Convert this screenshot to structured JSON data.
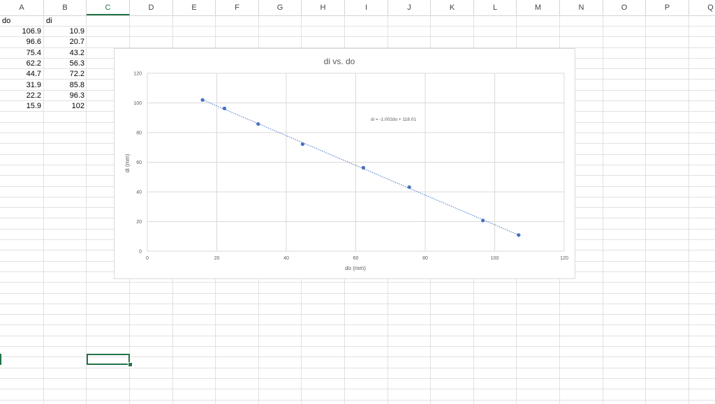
{
  "columns": [
    "A",
    "B",
    "C",
    "D",
    "E",
    "F",
    "G",
    "H",
    "I",
    "J",
    "K",
    "L",
    "M",
    "N",
    "O",
    "P",
    "Q"
  ],
  "selected_column": "C",
  "headers": {
    "a1": "do",
    "b1": "di"
  },
  "rows": [
    {
      "do": "106.9",
      "di": "10.9"
    },
    {
      "do": "96.6",
      "di": "20.7"
    },
    {
      "do": "75.4",
      "di": "43.2"
    },
    {
      "do": "62.2",
      "di": "56.3"
    },
    {
      "do": "44.7",
      "di": "72.2"
    },
    {
      "do": "31.9",
      "di": "85.8"
    },
    {
      "do": "22.2",
      "di": "96.3"
    },
    {
      "do": "15.9",
      "di": "102"
    }
  ],
  "accent_color": "#217346",
  "chart_data": {
    "type": "scatter",
    "title": "di vs. do",
    "xlabel": "do (mm)",
    "ylabel": "di (mm)",
    "xlim": [
      0,
      120
    ],
    "ylim": [
      0,
      120
    ],
    "xticks": [
      "0",
      "20",
      "40",
      "60",
      "80",
      "100",
      "120"
    ],
    "yticks": [
      "0",
      "20",
      "40",
      "60",
      "80",
      "100",
      "120"
    ],
    "grid": true,
    "point_color": "#4472c4",
    "points": [
      {
        "x": 106.9,
        "y": 10.9
      },
      {
        "x": 96.6,
        "y": 20.7
      },
      {
        "x": 75.4,
        "y": 43.2
      },
      {
        "x": 62.2,
        "y": 56.3
      },
      {
        "x": 44.7,
        "y": 72.2
      },
      {
        "x": 31.9,
        "y": 85.8
      },
      {
        "x": 22.2,
        "y": 96.3
      },
      {
        "x": 15.9,
        "y": 102
      }
    ],
    "trendline": {
      "type": "linear",
      "slope": -1.002,
      "intercept": 118.01,
      "equation_label": "di = -1.002do + 118.01",
      "from_x": 15.9,
      "to_x": 106.9
    }
  }
}
